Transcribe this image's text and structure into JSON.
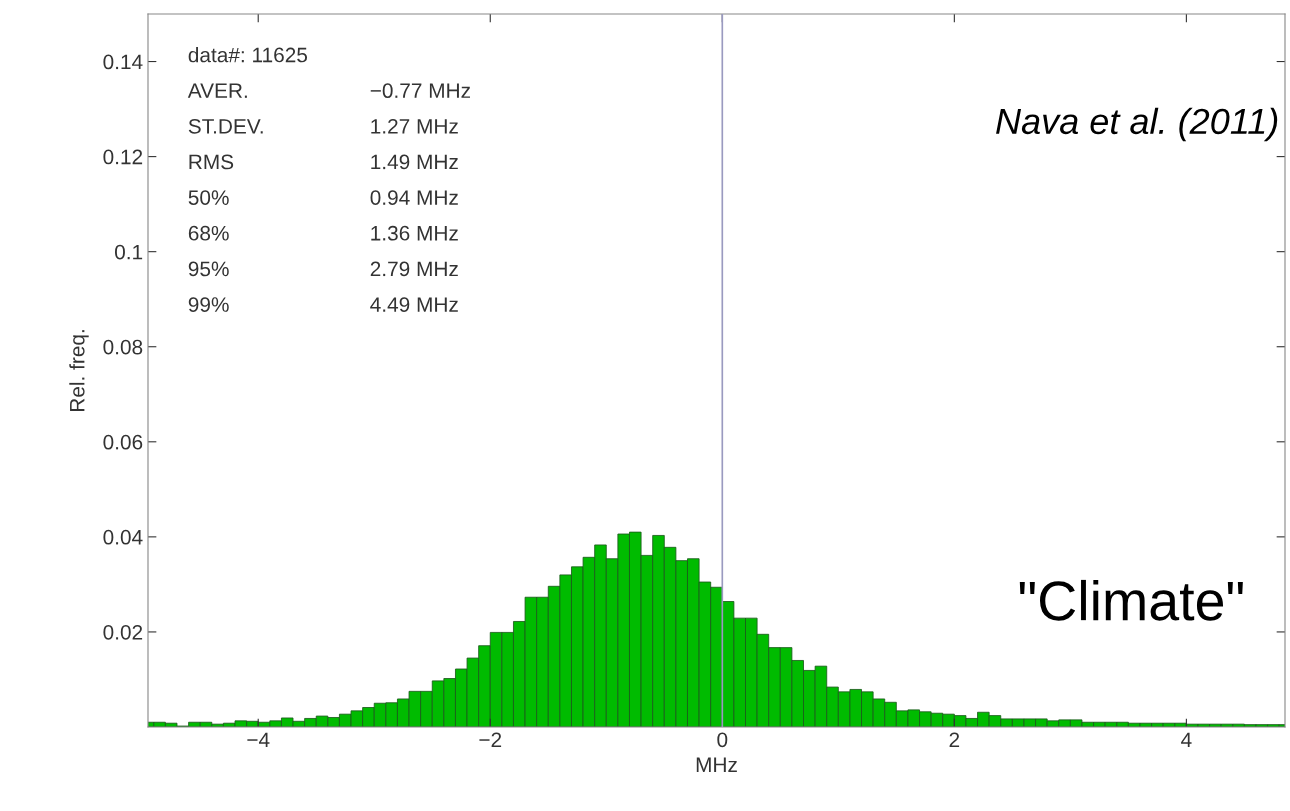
{
  "chart_data": {
    "type": "histogram",
    "xlabel": "MHz",
    "ylabel": "Rel. freq.",
    "bins": [
      -5.0,
      -4.9,
      -4.8,
      -4.7,
      -4.6,
      -4.5,
      -4.4,
      -4.3,
      -4.2,
      -4.1,
      -4.0,
      -3.9,
      -3.8,
      -3.7,
      -3.6,
      -3.5,
      -3.4,
      -3.3,
      -3.2,
      -3.1,
      -3.0,
      -2.9,
      -2.8,
      -2.7,
      -2.6,
      -2.5,
      -2.4,
      -2.3,
      -2.2,
      -2.1,
      -2.0,
      -1.9,
      -1.8,
      -1.7,
      -1.6,
      -1.5,
      -1.4,
      -1.3,
      -1.2,
      -1.1,
      -1.0,
      -0.9,
      -0.8,
      -0.7,
      -0.6,
      -0.5,
      -0.4,
      -0.3,
      -0.2,
      -0.1,
      0.0,
      0.1,
      0.2,
      0.3,
      0.4,
      0.5,
      0.6,
      0.7,
      0.8,
      0.9,
      1.0,
      1.1,
      1.2,
      1.3,
      1.4,
      1.5,
      1.6,
      1.7,
      1.8,
      1.9,
      2.0,
      2.1,
      2.2,
      2.3,
      2.4,
      2.5,
      2.6,
      2.7,
      2.8,
      2.9,
      3.0,
      3.1,
      3.2,
      3.3,
      3.4,
      3.5,
      3.6,
      3.7,
      3.8,
      3.9,
      4.0,
      4.1,
      4.2,
      4.3,
      4.4,
      4.5,
      4.6,
      4.7,
      4.8,
      4.9
    ],
    "values": [
      0.001,
      0.001,
      0.0008,
      0.0002,
      0.001,
      0.001,
      0.0006,
      0.0008,
      0.0013,
      0.0012,
      0.001,
      0.0013,
      0.0019,
      0.0012,
      0.0018,
      0.0023,
      0.002,
      0.0027,
      0.0034,
      0.0041,
      0.005,
      0.0051,
      0.0059,
      0.0075,
      0.0075,
      0.0097,
      0.0102,
      0.0122,
      0.0145,
      0.0171,
      0.0199,
      0.0199,
      0.0222,
      0.0273,
      0.0273,
      0.0296,
      0.032,
      0.0337,
      0.0357,
      0.0383,
      0.0354,
      0.0406,
      0.041,
      0.0361,
      0.0403,
      0.0378,
      0.035,
      0.0354,
      0.0305,
      0.0294,
      0.0264,
      0.0229,
      0.0229,
      0.0195,
      0.0167,
      0.0167,
      0.014,
      0.0119,
      0.0128,
      0.0084,
      0.0074,
      0.0079,
      0.0074,
      0.0059,
      0.0052,
      0.0034,
      0.0036,
      0.0032,
      0.0029,
      0.0027,
      0.0024,
      0.0018,
      0.0031,
      0.0024,
      0.0017,
      0.0017,
      0.0017,
      0.0017,
      0.0013,
      0.0015,
      0.0015,
      0.001,
      0.001,
      0.001,
      0.001,
      0.0008,
      0.0008,
      0.0008,
      0.0008,
      0.0008,
      0.0006,
      0.0006,
      0.0006,
      0.0006,
      0.0006,
      0.0005,
      0.0005,
      0.0005,
      0.0005
    ],
    "color": "#00bb00",
    "xlim": [
      -4.95,
      4.85
    ],
    "xticks": [
      {
        "value": -4,
        "label": "−4"
      },
      {
        "value": -2,
        "label": "−2"
      },
      0,
      2,
      4
    ],
    "ylim": [
      0,
      0.15
    ],
    "yticks": [
      0.02,
      0.04,
      0.06,
      0.08,
      0.1,
      0.12,
      0.14
    ],
    "ref_lines": [
      {
        "axis": "x",
        "value": 0,
        "color": "#9a9ac0"
      }
    ],
    "grid": false,
    "legend": false,
    "annotations": [
      "data#: 11625",
      "AVER.\t−0.77 MHz",
      "ST.DEV.\t1.27 MHz",
      "RMS\t1.49 MHz",
      "50%\t0.94 MHz",
      "68%\t1.36 MHz",
      "95%\t2.79 MHz",
      "99%\t4.49 MHz",
      "Nava et al. (2011)",
      "\"Climate\""
    ]
  }
}
